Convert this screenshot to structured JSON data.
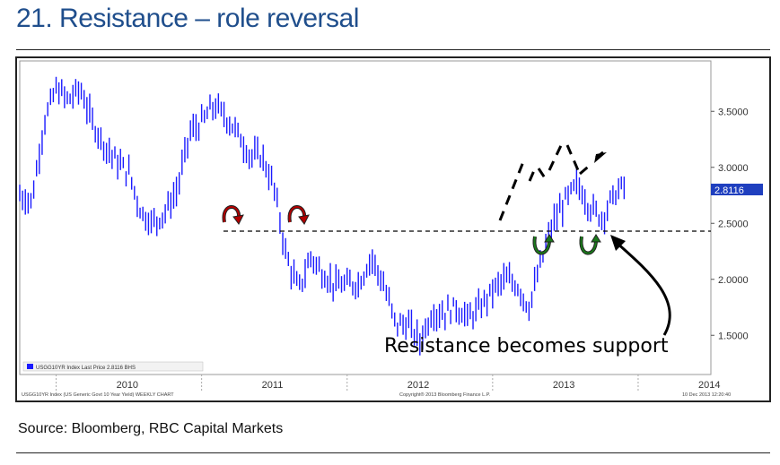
{
  "page_title": "21. Resistance – role reversal",
  "source": "Source: Bloomberg, RBC Capital Markets",
  "chart_data": {
    "type": "line",
    "title": "",
    "xlabel": "",
    "ylabel": "",
    "x_ticks": [
      "2010",
      "2011",
      "2012",
      "2013",
      "2014"
    ],
    "y_ticks": [
      "1.5000",
      "2.0000",
      "2.5000",
      "3.0000",
      "3.5000"
    ],
    "ylim": [
      1.15,
      3.95
    ],
    "last_price_label": "2.8116",
    "annotation": "Resistance becomes support",
    "resistance_level": 2.43,
    "legend_text": "USGG10YR Index     Last Price  2.8116     BHS",
    "footer_left": "USGG10YR Index (US Generic Govt 10 Year Yield) WEEKLY CHART",
    "footer_mid": "Copyright® 2013 Bloomberg Finance L.P.",
    "footer_right": "10 Dec 2013 12:20:40",
    "colors": {
      "series": "#1a1aff",
      "resistance": "#000000",
      "arrow_red": "#b30000",
      "arrow_green": "#1a7a1a",
      "price_box": "#1f3fbf"
    },
    "series": [
      {
        "name": "USGG10YR Index",
        "x": [
          "2009-10",
          "2009-11",
          "2009-12",
          "2010-01",
          "2010-02",
          "2010-03",
          "2010-04",
          "2010-05",
          "2010-06",
          "2010-07",
          "2010-08",
          "2010-09",
          "2010-10",
          "2010-11",
          "2010-12",
          "2011-01",
          "2011-02",
          "2011-03",
          "2011-04",
          "2011-05",
          "2011-06",
          "2011-07",
          "2011-08",
          "2011-09",
          "2011-10",
          "2011-11",
          "2011-12",
          "2012-01",
          "2012-02",
          "2012-03",
          "2012-04",
          "2012-05",
          "2012-06",
          "2012-07",
          "2012-08",
          "2012-09",
          "2012-10",
          "2012-11",
          "2012-12",
          "2013-01",
          "2013-02",
          "2013-03",
          "2013-04",
          "2013-05",
          "2013-06",
          "2013-07",
          "2013-08",
          "2013-09",
          "2013-10",
          "2013-11",
          "2013-12"
        ],
        "values": [
          2.75,
          2.7,
          3.4,
          3.7,
          3.6,
          3.7,
          3.4,
          3.2,
          3.05,
          2.95,
          2.6,
          2.5,
          2.6,
          2.8,
          3.3,
          3.4,
          3.55,
          3.45,
          3.3,
          3.1,
          3.1,
          2.8,
          2.2,
          1.9,
          2.2,
          2.05,
          1.95,
          1.95,
          1.97,
          2.2,
          1.95,
          1.6,
          1.6,
          1.45,
          1.7,
          1.7,
          1.75,
          1.65,
          1.75,
          1.9,
          2.0,
          1.95,
          1.75,
          2.15,
          2.5,
          2.7,
          2.85,
          2.65,
          2.55,
          2.75,
          2.85
        ]
      }
    ]
  }
}
